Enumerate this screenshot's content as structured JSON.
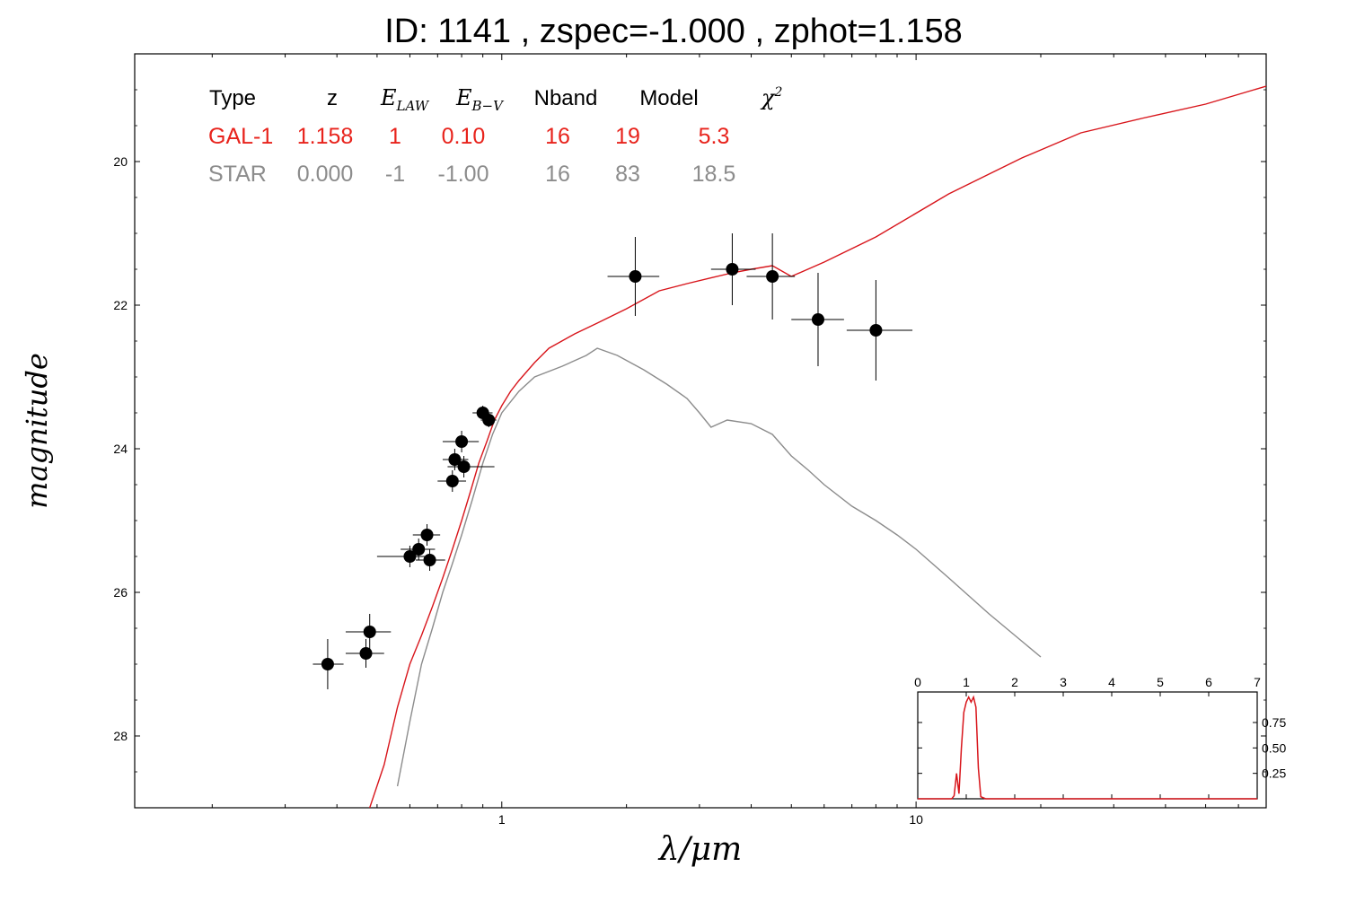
{
  "chart_data": {
    "type": "line",
    "title": "ID:  1141  , zspec=-1.000 , zphot=1.158",
    "xlabel": "λ/μm",
    "ylabel": "magnitude",
    "x_scale": "log",
    "xlim": [
      0.13,
      70
    ],
    "ylim": [
      29.0,
      18.5
    ],
    "y_inverted": true,
    "y_ticks": [
      20,
      22,
      24,
      26,
      28
    ],
    "y_tick_labels": [
      "20",
      "22",
      "24",
      "26",
      "28"
    ],
    "x_tick_labels": [
      {
        "x": 1,
        "label": "1"
      },
      {
        "x": 10,
        "label": "10"
      }
    ],
    "grid": false,
    "fit_table": {
      "headers": [
        "Type",
        "z",
        "E_LAW",
        "E_B−V",
        "Nband",
        "Model",
        "χ²"
      ],
      "rows": [
        {
          "type": "GAL-1",
          "z": "1.158",
          "elaw": "1",
          "ebv": "0.10",
          "nband": "16",
          "model": "19",
          "chi2": "5.3",
          "color": "#e8231c"
        },
        {
          "type": "STAR",
          "z": "0.000",
          "elaw": "-1",
          "ebv": "-1.00",
          "nband": "16",
          "model": "83",
          "chi2": "18.5",
          "color": "#8c8c8c"
        }
      ]
    },
    "series": [
      {
        "color": "#d8151b",
        "x": [
          0.48,
          0.52,
          0.56,
          0.6,
          0.64,
          0.68,
          0.72,
          0.76,
          0.8,
          0.84,
          0.88,
          0.92,
          0.96,
          1.0,
          1.05,
          1.1,
          1.2,
          1.3,
          1.5,
          1.7,
          2.0,
          2.4,
          2.8,
          3.2,
          3.6,
          4.0,
          4.5,
          5.0,
          6.0,
          8.0,
          12,
          18,
          25,
          35,
          50,
          70
        ],
        "y": [
          29.0,
          28.4,
          27.6,
          27.0,
          26.6,
          26.2,
          25.8,
          25.4,
          25.0,
          24.6,
          24.2,
          23.9,
          23.6,
          23.4,
          23.2,
          23.05,
          22.8,
          22.6,
          22.4,
          22.25,
          22.05,
          21.8,
          21.7,
          21.62,
          21.55,
          21.5,
          21.45,
          21.6,
          21.4,
          21.05,
          20.45,
          19.95,
          19.6,
          19.4,
          19.2,
          18.95
        ]
      },
      {
        "color": "#8c8c8c",
        "x": [
          0.56,
          0.6,
          0.64,
          0.68,
          0.72,
          0.76,
          0.8,
          0.85,
          0.9,
          0.95,
          1.0,
          1.1,
          1.2,
          1.4,
          1.6,
          1.7,
          1.9,
          2.2,
          2.5,
          2.8,
          3.0,
          3.2,
          3.5,
          4.0,
          4.5,
          5.0,
          5.5,
          6.0,
          7.0,
          8.0,
          9.0,
          10.0,
          12.0,
          15.0,
          20.0
        ],
        "y": [
          28.7,
          27.8,
          27.0,
          26.5,
          26.0,
          25.6,
          25.2,
          24.7,
          24.2,
          23.8,
          23.5,
          23.2,
          23.0,
          22.85,
          22.7,
          22.6,
          22.7,
          22.9,
          23.1,
          23.3,
          23.5,
          23.7,
          23.6,
          23.65,
          23.8,
          24.1,
          24.3,
          24.5,
          24.8,
          25.0,
          25.2,
          25.4,
          25.8,
          26.3,
          26.9
        ]
      }
    ],
    "points": [
      {
        "x": 0.38,
        "y": 27.0,
        "xerr": [
          0.03,
          0.035
        ],
        "yerr": 0.35
      },
      {
        "x": 0.48,
        "y": 26.55,
        "xerr": [
          0.06,
          0.06
        ],
        "yerr": 0.25
      },
      {
        "x": 0.47,
        "y": 26.85,
        "xerr": [
          0.05,
          0.05
        ],
        "yerr": 0.2
      },
      {
        "x": 0.6,
        "y": 25.5,
        "xerr": [
          0.1,
          0.08
        ],
        "yerr": 0.15
      },
      {
        "x": 0.63,
        "y": 25.4,
        "xerr": [
          0.06,
          0.06
        ],
        "yerr": 0.15
      },
      {
        "x": 0.66,
        "y": 25.2,
        "xerr": [
          0.05,
          0.05
        ],
        "yerr": 0.15
      },
      {
        "x": 0.67,
        "y": 25.55,
        "xerr": [
          0.05,
          0.06
        ],
        "yerr": 0.15
      },
      {
        "x": 0.76,
        "y": 24.45,
        "xerr": [
          0.06,
          0.06
        ],
        "yerr": 0.15
      },
      {
        "x": 0.77,
        "y": 24.15,
        "xerr": [
          0.05,
          0.06
        ],
        "yerr": 0.15
      },
      {
        "x": 0.8,
        "y": 23.9,
        "xerr": [
          0.08,
          0.08
        ],
        "yerr": 0.15
      },
      {
        "x": 0.81,
        "y": 24.25,
        "xerr": [
          0.07,
          0.15
        ],
        "yerr": 0.15
      },
      {
        "x": 0.9,
        "y": 23.5,
        "xerr": [
          0.05,
          0.05
        ],
        "yerr": 0.1
      },
      {
        "x": 0.93,
        "y": 23.6,
        "xerr": [
          0.04,
          0.04
        ],
        "yerr": 0.1
      },
      {
        "x": 2.1,
        "y": 21.6,
        "xerr": [
          0.3,
          0.3
        ],
        "yerr": 0.55
      },
      {
        "x": 3.6,
        "y": 21.5,
        "xerr": [
          0.4,
          0.5
        ],
        "yerr": 0.5
      },
      {
        "x": 4.5,
        "y": 21.6,
        "xerr": [
          0.6,
          0.6
        ],
        "yerr": 0.6
      },
      {
        "x": 5.8,
        "y": 22.2,
        "xerr": [
          0.8,
          0.9
        ],
        "yerr": 0.65
      },
      {
        "x": 8.0,
        "y": 22.35,
        "xerr": [
          1.2,
          1.8
        ],
        "yerr": 0.7
      }
    ],
    "inset": {
      "type": "line",
      "xlim": [
        0,
        7
      ],
      "ylim": [
        0,
        1.05
      ],
      "x_ticks": [
        0,
        1,
        2,
        3,
        4,
        5,
        6,
        7
      ],
      "x_tick_labels": [
        "0",
        "1",
        "2",
        "3",
        "4",
        "5",
        "6",
        "7"
      ],
      "y_ticks": [
        0.25,
        0.5,
        0.75
      ],
      "y_tick_labels": [
        "0.25",
        "0.50",
        "0.75"
      ],
      "color": "#d8151b",
      "x": [
        0,
        0.7,
        0.75,
        0.8,
        0.85,
        0.9,
        0.95,
        1.0,
        1.05,
        1.1,
        1.15,
        1.2,
        1.25,
        1.3,
        1.4,
        7
      ],
      "y": [
        0,
        0,
        0.03,
        0.25,
        0.05,
        0.5,
        0.85,
        0.95,
        1.0,
        0.95,
        1.0,
        0.9,
        0.3,
        0.02,
        0,
        0
      ]
    }
  }
}
